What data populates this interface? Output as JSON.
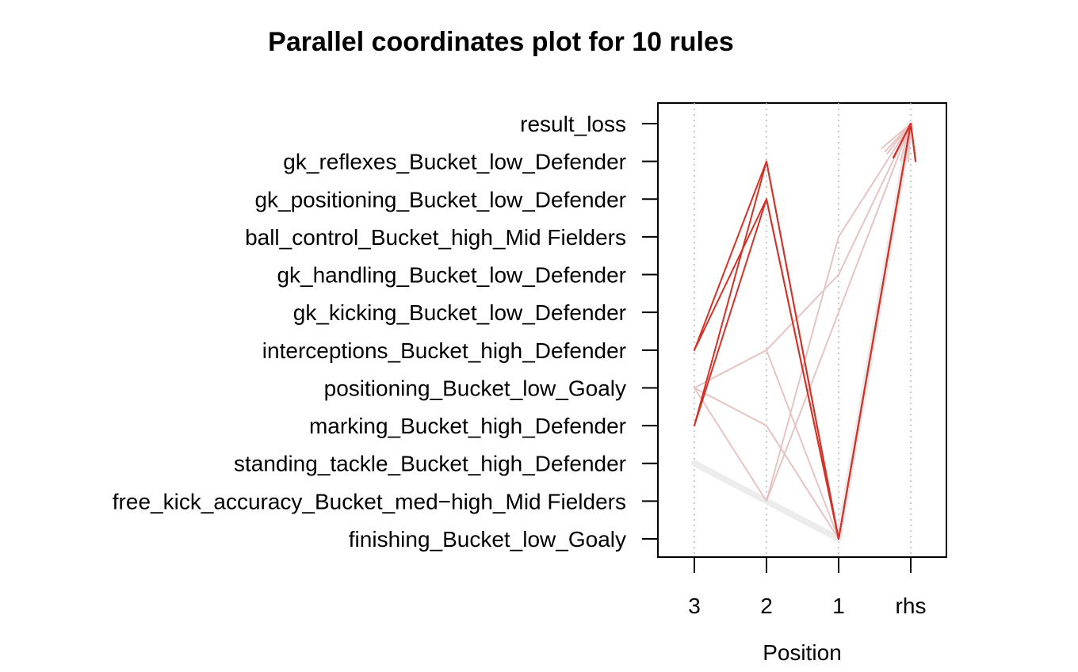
{
  "chart_data": {
    "type": "parallel-coordinates",
    "title": "Parallel coordinates plot for 10 rules",
    "xlabel": "Position",
    "positions": [
      "3",
      "2",
      "1",
      "rhs"
    ],
    "items": [
      "result_loss",
      "gk_reflexes_Bucket_low_Defender",
      "gk_positioning_Bucket_low_Defender",
      "ball_control_Bucket_high_Mid Fielders",
      "gk_handling_Bucket_low_Defender",
      "gk_kicking_Bucket_low_Defender",
      "interceptions_Bucket_high_Defender",
      "positioning_Bucket_low_Goaly",
      "marking_Bucket_high_Defender",
      "standing_tackle_Bucket_high_Defender",
      "free_kick_accuracy_Bucket_med−high_Mid Fielders",
      "finishing_Bucket_low_Goaly"
    ],
    "grid": true,
    "rules": [
      {
        "path": [
          "interceptions_Bucket_high_Defender",
          "gk_reflexes_Bucket_low_Defender",
          "finishing_Bucket_low_Goaly",
          "result_loss"
        ],
        "color": "#d73027"
      },
      {
        "path": [
          "marking_Bucket_high_Defender",
          "gk_reflexes_Bucket_low_Defender",
          "finishing_Bucket_low_Goaly",
          "result_loss"
        ],
        "color": "#d73027"
      },
      {
        "path": [
          "interceptions_Bucket_high_Defender",
          "gk_positioning_Bucket_low_Defender",
          "finishing_Bucket_low_Goaly",
          "result_loss"
        ],
        "color": "#d73027"
      },
      {
        "path": [
          "marking_Bucket_high_Defender",
          "gk_positioning_Bucket_low_Defender",
          "finishing_Bucket_low_Goaly",
          "result_loss"
        ],
        "color": "#d73027"
      },
      {
        "path": [
          "positioning_Bucket_low_Goaly",
          "interceptions_Bucket_high_Defender",
          "gk_handling_Bucket_low_Defender",
          "result_loss"
        ],
        "color": "#e7c4c4"
      },
      {
        "path": [
          "positioning_Bucket_low_Goaly",
          "free_kick_accuracy_Bucket_med−high_Mid Fielders",
          "ball_control_Bucket_high_Mid Fielders",
          "result_loss"
        ],
        "color": "#e7c4c4"
      },
      {
        "path": [
          "positioning_Bucket_low_Goaly",
          "marking_Bucket_high_Defender",
          "finishing_Bucket_low_Goaly",
          "result_loss"
        ],
        "color": "#e7c4c4"
      },
      {
        "path": [
          null,
          "interceptions_Bucket_high_Defender",
          "finishing_Bucket_low_Goaly",
          "result_loss"
        ],
        "color": "#e7c4c4"
      },
      {
        "path": [
          null,
          "free_kick_accuracy_Bucket_med−high_Mid Fielders",
          "gk_kicking_Bucket_low_Defender",
          "result_loss"
        ],
        "color": "#e7c4c4"
      },
      {
        "path": [
          "standing_tackle_Bucket_high_Defender",
          null,
          "finishing_Bucket_low_Goaly",
          "result_loss"
        ],
        "color": "#ececec"
      }
    ]
  }
}
